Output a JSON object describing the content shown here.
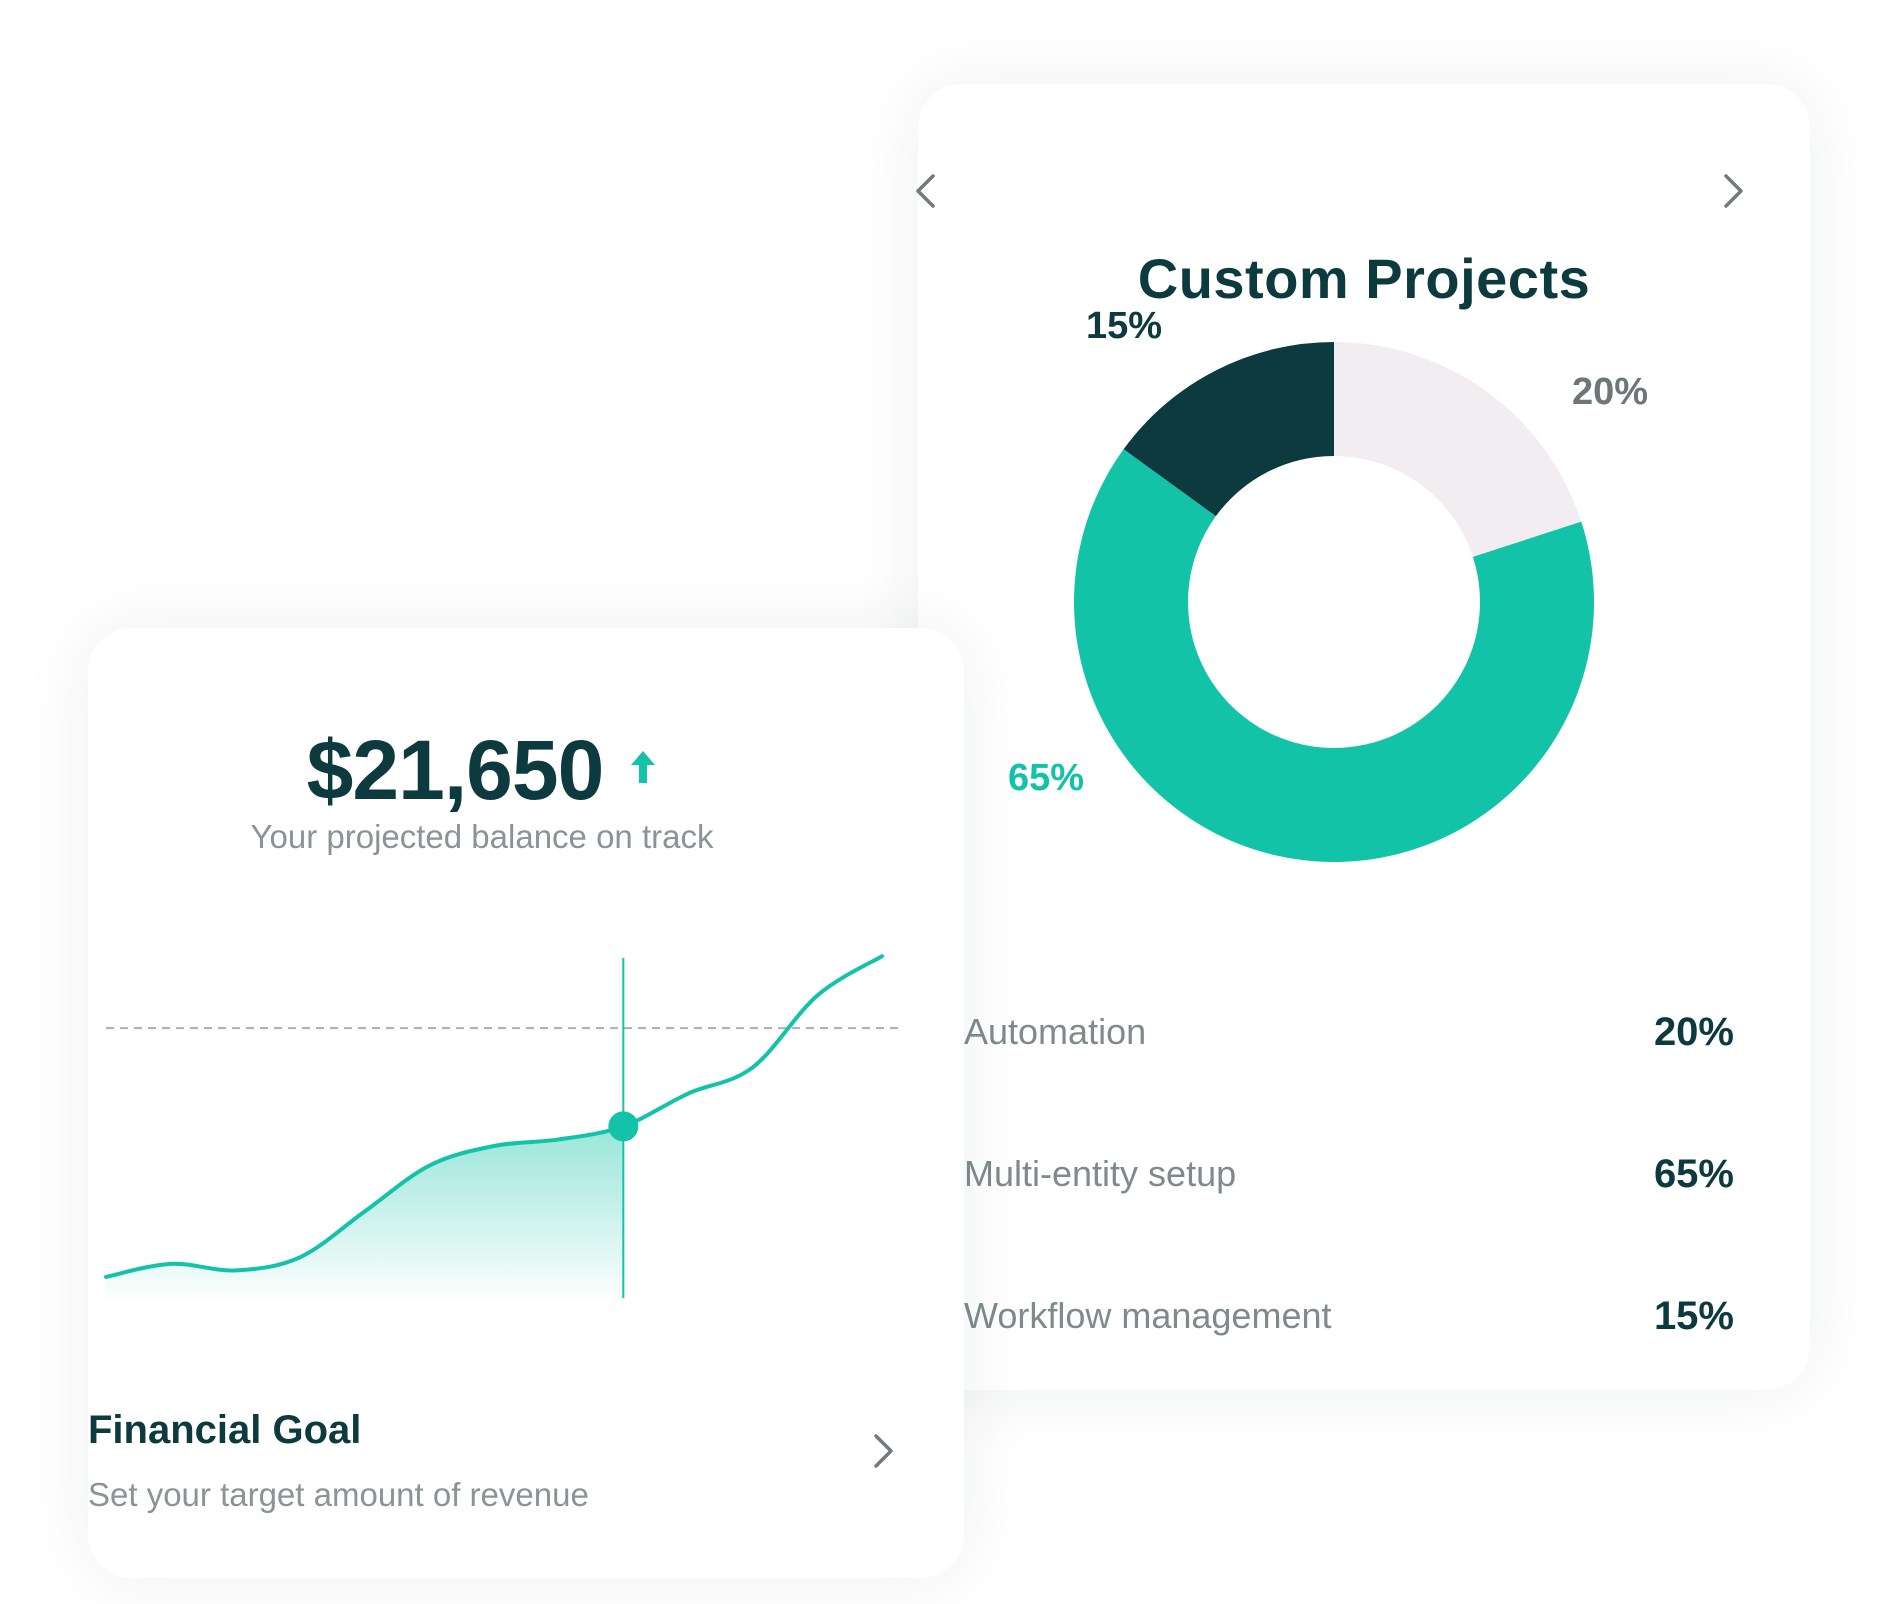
{
  "projects_card": {
    "title": "Custom Projects",
    "prev_icon": "chevron-left-icon",
    "next_icon": "chevron-right-icon"
  },
  "chart_data": [
    {
      "type": "pie",
      "title": "Custom Projects",
      "slices": [
        {
          "name": "Automation",
          "value": 20,
          "label": "20%",
          "color": "#f1edf0"
        },
        {
          "name": "Multi-entity setup",
          "value": 65,
          "label": "65%",
          "color": "#12c3a8"
        },
        {
          "name": "Workflow management",
          "value": 15,
          "label": "15%",
          "color": "#0c3a3f"
        }
      ],
      "hole": true
    },
    {
      "type": "area",
      "title": "",
      "xlabel": "",
      "ylabel": "",
      "series": [
        {
          "values": [
            2,
            4,
            3,
            5,
            12,
            19,
            22,
            23,
            25,
            30,
            34,
            45,
            51
          ]
        }
      ],
      "target": 40,
      "marker_index": 8,
      "ylim": [
        0,
        55
      ],
      "line_color": "#12c3a8",
      "grid": false
    }
  ],
  "legend": [
    {
      "label": "Automation",
      "value": "20%"
    },
    {
      "label": "Multi-entity setup",
      "value": "65%"
    },
    {
      "label": "Workflow management",
      "value": "15%"
    }
  ],
  "goal_card": {
    "balance": "$21,650",
    "balance_trend_icon": "up-arrow-icon",
    "balance_caption": "Your projected balance on track",
    "title": "Financial Goal",
    "subtitle": "Set your target amount of revenue",
    "arrow_icon": "chevron-right-icon"
  },
  "colors": {
    "primary_dark": "#0d3a3f",
    "accent": "#12c3a8",
    "muted": "#f1edf0",
    "muted_text": "#8a9496"
  }
}
